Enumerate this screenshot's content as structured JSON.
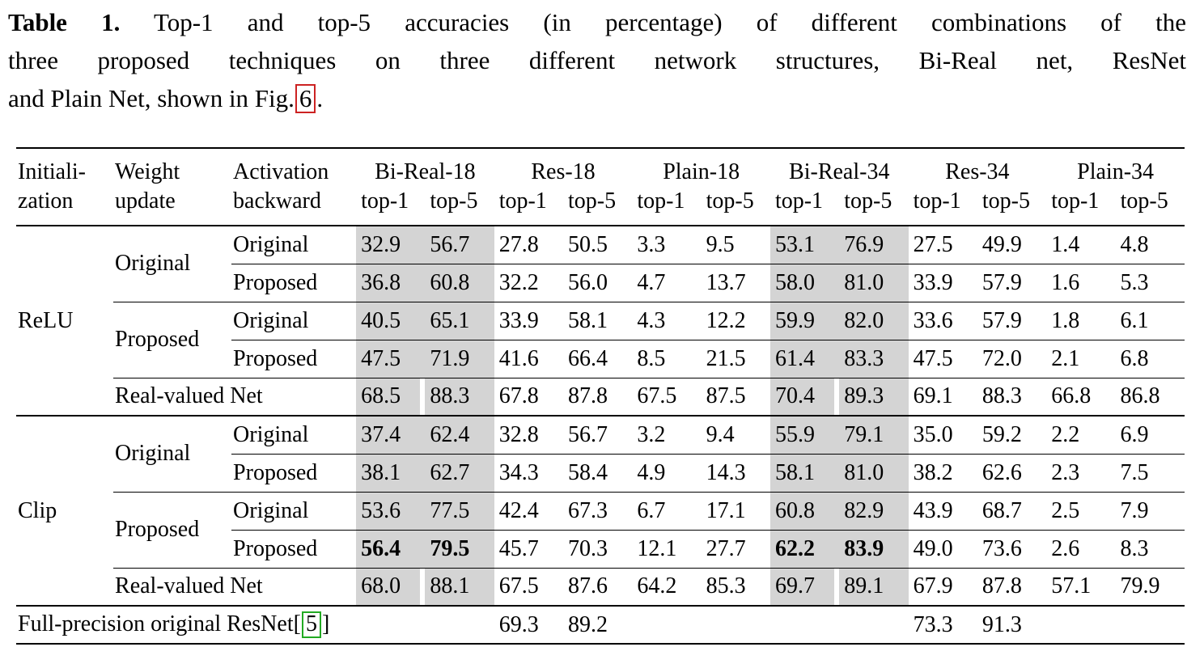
{
  "caption": {
    "bold_label": "Table 1.",
    "line1_rest": " Top-1 and top-5 accuracies (in percentage) of different combinations of the",
    "line2": "three proposed techniques on three different network structures, Bi-Real net, ResNet",
    "line3_prefix": "and Plain Net, shown in Fig.",
    "fig_ref": "6",
    "line3_suffix": ".",
    "fig_ref_box_color": "#cc2222"
  },
  "table": {
    "shade_color": "#d4d4d4",
    "header": {
      "col1": [
        "Initiali-",
        "zation"
      ],
      "col2": [
        "Weight",
        "update"
      ],
      "col3": [
        "Activation",
        "backward"
      ],
      "groups": [
        {
          "name": "Bi-Real-18",
          "sub": [
            "top-1",
            "top-5"
          ],
          "shaded": true
        },
        {
          "name": "Res-18",
          "sub": [
            "top-1",
            "top-5"
          ],
          "shaded": false
        },
        {
          "name": "Plain-18",
          "sub": [
            "top-1",
            "top-5"
          ],
          "shaded": false
        },
        {
          "name": "Bi-Real-34",
          "sub": [
            "top-1",
            "top-5"
          ],
          "shaded": true
        },
        {
          "name": "Res-34",
          "sub": [
            "top-1",
            "top-5"
          ],
          "shaded": false
        },
        {
          "name": "Plain-34",
          "sub": [
            "top-1",
            "top-5"
          ],
          "shaded": false
        }
      ]
    },
    "column_keys": [
      "bireal18-top1",
      "bireal18-top5",
      "res18-top1",
      "res18-top5",
      "plain18-top1",
      "plain18-top5",
      "bireal34-top1",
      "bireal34-top5",
      "res34-top1",
      "res34-top5",
      "plain34-top1",
      "plain34-top5"
    ],
    "sections": [
      {
        "init": "ReLU",
        "groups": [
          {
            "weight": "Original",
            "rows": [
              {
                "activation": "Original",
                "values": [
                  "32.9",
                  "56.7",
                  "27.8",
                  "50.5",
                  "3.3",
                  "9.5",
                  "53.1",
                  "76.9",
                  "27.5",
                  "49.9",
                  "1.4",
                  "4.8"
                ]
              },
              {
                "activation": "Proposed",
                "values": [
                  "36.8",
                  "60.8",
                  "32.2",
                  "56.0",
                  "4.7",
                  "13.7",
                  "58.0",
                  "81.0",
                  "33.9",
                  "57.9",
                  "1.6",
                  "5.3"
                ]
              }
            ]
          },
          {
            "weight": "Proposed",
            "rows": [
              {
                "activation": "Original",
                "values": [
                  "40.5",
                  "65.1",
                  "33.9",
                  "58.1",
                  "4.3",
                  "12.2",
                  "59.9",
                  "82.0",
                  "33.6",
                  "57.9",
                  "1.8",
                  "6.1"
                ]
              },
              {
                "activation": "Proposed",
                "values": [
                  "47.5",
                  "71.9",
                  "41.6",
                  "66.4",
                  "8.5",
                  "21.5",
                  "61.4",
                  "83.3",
                  "47.5",
                  "72.0",
                  "2.1",
                  "6.8"
                ]
              }
            ]
          }
        ],
        "summary": {
          "label": "Real-valued Net",
          "values": [
            "68.5",
            "88.3",
            "67.8",
            "87.8",
            "67.5",
            "87.5",
            "70.4",
            "89.3",
            "69.1",
            "88.3",
            "66.8",
            "86.8"
          ]
        }
      },
      {
        "init": "Clip",
        "groups": [
          {
            "weight": "Original",
            "rows": [
              {
                "activation": "Original",
                "values": [
                  "37.4",
                  "62.4",
                  "32.8",
                  "56.7",
                  "3.2",
                  "9.4",
                  "55.9",
                  "79.1",
                  "35.0",
                  "59.2",
                  "2.2",
                  "6.9"
                ]
              },
              {
                "activation": "Proposed",
                "values": [
                  "38.1",
                  "62.7",
                  "34.3",
                  "58.4",
                  "4.9",
                  "14.3",
                  "58.1",
                  "81.0",
                  "38.2",
                  "62.6",
                  "2.3",
                  "7.5"
                ]
              }
            ]
          },
          {
            "weight": "Proposed",
            "rows": [
              {
                "activation": "Original",
                "values": [
                  "53.6",
                  "77.5",
                  "42.4",
                  "67.3",
                  "6.7",
                  "17.1",
                  "60.8",
                  "82.9",
                  "43.9",
                  "68.7",
                  "2.5",
                  "7.9"
                ]
              },
              {
                "activation": "Proposed",
                "values": [
                  "56.4",
                  "79.5",
                  "45.7",
                  "70.3",
                  "12.1",
                  "27.7",
                  "62.2",
                  "83.9",
                  "49.0",
                  "73.6",
                  "2.6",
                  "8.3"
                ],
                "bold": [
                  0,
                  1,
                  6,
                  7
                ]
              }
            ]
          }
        ],
        "summary": {
          "label": "Real-valued Net",
          "values": [
            "68.0",
            "88.1",
            "67.5",
            "87.6",
            "64.2",
            "85.3",
            "69.7",
            "89.1",
            "67.9",
            "87.8",
            "57.1",
            "79.9"
          ]
        }
      }
    ],
    "footer": {
      "label_prefix": "Full-precision original ResNet",
      "bracket_open": "[",
      "cite_ref": "5",
      "bracket_close": "]",
      "cite_box_color": "#22aa22",
      "values": [
        "",
        "",
        "69.3",
        "89.2",
        "",
        "",
        "",
        "",
        "73.3",
        "91.3",
        "",
        ""
      ]
    }
  }
}
